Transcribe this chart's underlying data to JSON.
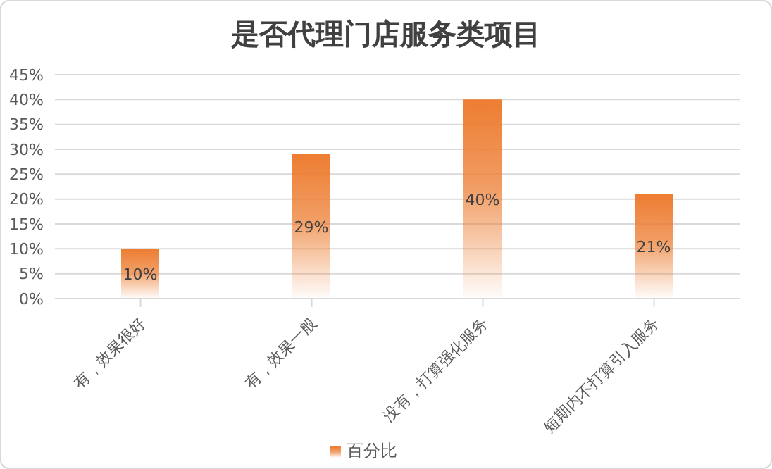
{
  "chart_data": {
    "type": "bar",
    "title": "是否代理门店服务类项目",
    "categories": [
      "有，效果很好",
      "有，效果一般",
      "没有，打算强化服务",
      "短期内不打算引入服务"
    ],
    "series": [
      {
        "name": "百分比",
        "color": "#ed7d31",
        "values": [
          10,
          29,
          40,
          21
        ],
        "value_labels": [
          "10%",
          "29%",
          "40%",
          "21%"
        ]
      }
    ],
    "ylim": [
      0,
      45
    ],
    "yticks": [
      {
        "value": 0,
        "label": "0%"
      },
      {
        "value": 5,
        "label": "5%"
      },
      {
        "value": 10,
        "label": "10%"
      },
      {
        "value": 15,
        "label": "15%"
      },
      {
        "value": 20,
        "label": "20%"
      },
      {
        "value": 25,
        "label": "25%"
      },
      {
        "value": 30,
        "label": "30%"
      },
      {
        "value": 35,
        "label": "35%"
      },
      {
        "value": 40,
        "label": "40%"
      },
      {
        "value": 45,
        "label": "45%"
      }
    ],
    "grid": "y",
    "legend": "bottom"
  }
}
